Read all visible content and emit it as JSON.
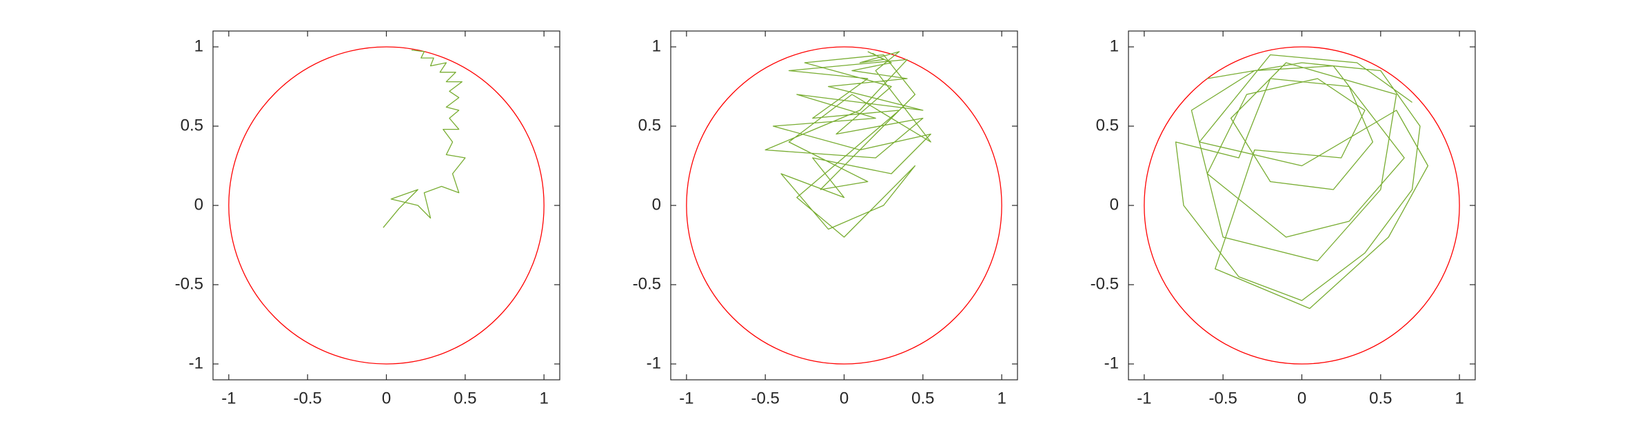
{
  "chart_data": [
    {
      "type": "line",
      "xlim": [
        -1.1,
        1.1
      ],
      "ylim": [
        -1.1,
        1.1
      ],
      "xticks": [
        -1,
        -0.5,
        0,
        0.5,
        1
      ],
      "yticks": [
        -1,
        -0.5,
        0,
        0.5,
        1
      ],
      "circle": {
        "cx": 0,
        "cy": 0,
        "r": 1,
        "color": "#ff0000"
      },
      "series": [
        {
          "color": "#77ac30",
          "x": [
            -0.02,
            0.08,
            0.2,
            0.03,
            0.2,
            0.28,
            0.24,
            0.35,
            0.46,
            0.42,
            0.5,
            0.38,
            0.42,
            0.36,
            0.46,
            0.4,
            0.46,
            0.38,
            0.46,
            0.4,
            0.48,
            0.38,
            0.44,
            0.34,
            0.38,
            0.28,
            0.3,
            0.22,
            0.24,
            0.16
          ],
          "values": [
            -0.14,
            -0.02,
            0.1,
            0.04,
            0.0,
            -0.08,
            0.08,
            0.12,
            0.08,
            0.2,
            0.3,
            0.32,
            0.4,
            0.48,
            0.48,
            0.55,
            0.6,
            0.62,
            0.68,
            0.72,
            0.78,
            0.78,
            0.84,
            0.84,
            0.9,
            0.88,
            0.93,
            0.93,
            0.97,
            0.98
          ]
        }
      ]
    },
    {
      "type": "line",
      "xlim": [
        -1.1,
        1.1
      ],
      "ylim": [
        -1.1,
        1.1
      ],
      "xticks": [
        -1,
        -0.5,
        0,
        0.5,
        1
      ],
      "yticks": [
        -1,
        -0.5,
        0,
        0.5,
        1
      ],
      "circle": {
        "cx": 0,
        "cy": 0,
        "r": 1,
        "color": "#ff0000"
      },
      "series": [
        {
          "color": "#77ac30",
          "x": [
            0.15,
            0.3,
            0.05,
            0.4,
            -0.1,
            0.5,
            -0.3,
            0.2,
            -0.45,
            0.1,
            0.55,
            0.3,
            -0.2,
            0.0,
            -0.4,
            -0.1,
            0.25,
            0.45,
            0.0,
            -0.3,
            0.35,
            -0.2,
            0.15,
            -0.35,
            0.4,
            0.1,
            -0.5,
            0.2,
            0.5,
            -0.05,
            0.3,
            -0.25,
            0.25,
            0.45,
            -0.15,
            0.15,
            -0.35,
            0.05,
            0.55,
            0.2,
            0.35,
            0.1,
            0.25,
            0.18
          ],
          "values": [
            0.97,
            0.9,
            0.85,
            0.8,
            0.75,
            0.6,
            0.7,
            0.55,
            0.5,
            0.35,
            0.45,
            0.2,
            0.3,
            0.05,
            0.2,
            -0.15,
            0.0,
            0.25,
            -0.2,
            0.05,
            0.6,
            0.55,
            0.8,
            0.85,
            0.92,
            0.6,
            0.35,
            0.3,
            0.55,
            0.45,
            0.75,
            0.9,
            0.95,
            0.7,
            0.1,
            0.15,
            0.4,
            0.7,
            0.4,
            0.85,
            0.97,
            0.9,
            0.92,
            0.96
          ]
        }
      ]
    },
    {
      "type": "line",
      "xlim": [
        -1.1,
        1.1
      ],
      "ylim": [
        -1.1,
        1.1
      ],
      "xticks": [
        -1,
        -0.5,
        0,
        0.5,
        1
      ],
      "yticks": [
        -1,
        -0.5,
        0,
        0.5,
        1
      ],
      "circle": {
        "cx": 0,
        "cy": 0,
        "r": 1,
        "color": "#ff0000"
      },
      "series": [
        {
          "color": "#77ac30",
          "x": [
            -0.6,
            0.0,
            0.5,
            0.75,
            0.7,
            0.4,
            0.0,
            -0.4,
            -0.75,
            -0.8,
            -0.4,
            -0.2,
            0.3,
            0.45,
            0.2,
            -0.2,
            -0.45,
            -0.1,
            0.6,
            0.5,
            0.1,
            -0.5,
            -0.7,
            -0.3,
            0.2,
            0.65,
            0.3,
            -0.1,
            -0.6,
            -0.35,
            0.1,
            0.4,
            0.25,
            -0.3,
            -0.55,
            0.05,
            0.55,
            0.8,
            0.6,
            0.0,
            -0.65,
            -0.2,
            0.35,
            0.7
          ],
          "values": [
            0.8,
            0.9,
            0.85,
            0.5,
            0.1,
            -0.3,
            -0.6,
            -0.45,
            0.0,
            0.4,
            0.3,
            0.8,
            0.75,
            0.4,
            0.1,
            0.15,
            0.55,
            0.9,
            0.7,
            0.1,
            -0.35,
            -0.2,
            0.6,
            0.85,
            0.88,
            0.3,
            -0.1,
            -0.2,
            0.2,
            0.7,
            0.8,
            0.6,
            0.3,
            0.35,
            -0.4,
            -0.65,
            -0.2,
            0.25,
            0.6,
            0.25,
            0.4,
            0.95,
            0.9,
            0.65
          ]
        }
      ]
    }
  ]
}
